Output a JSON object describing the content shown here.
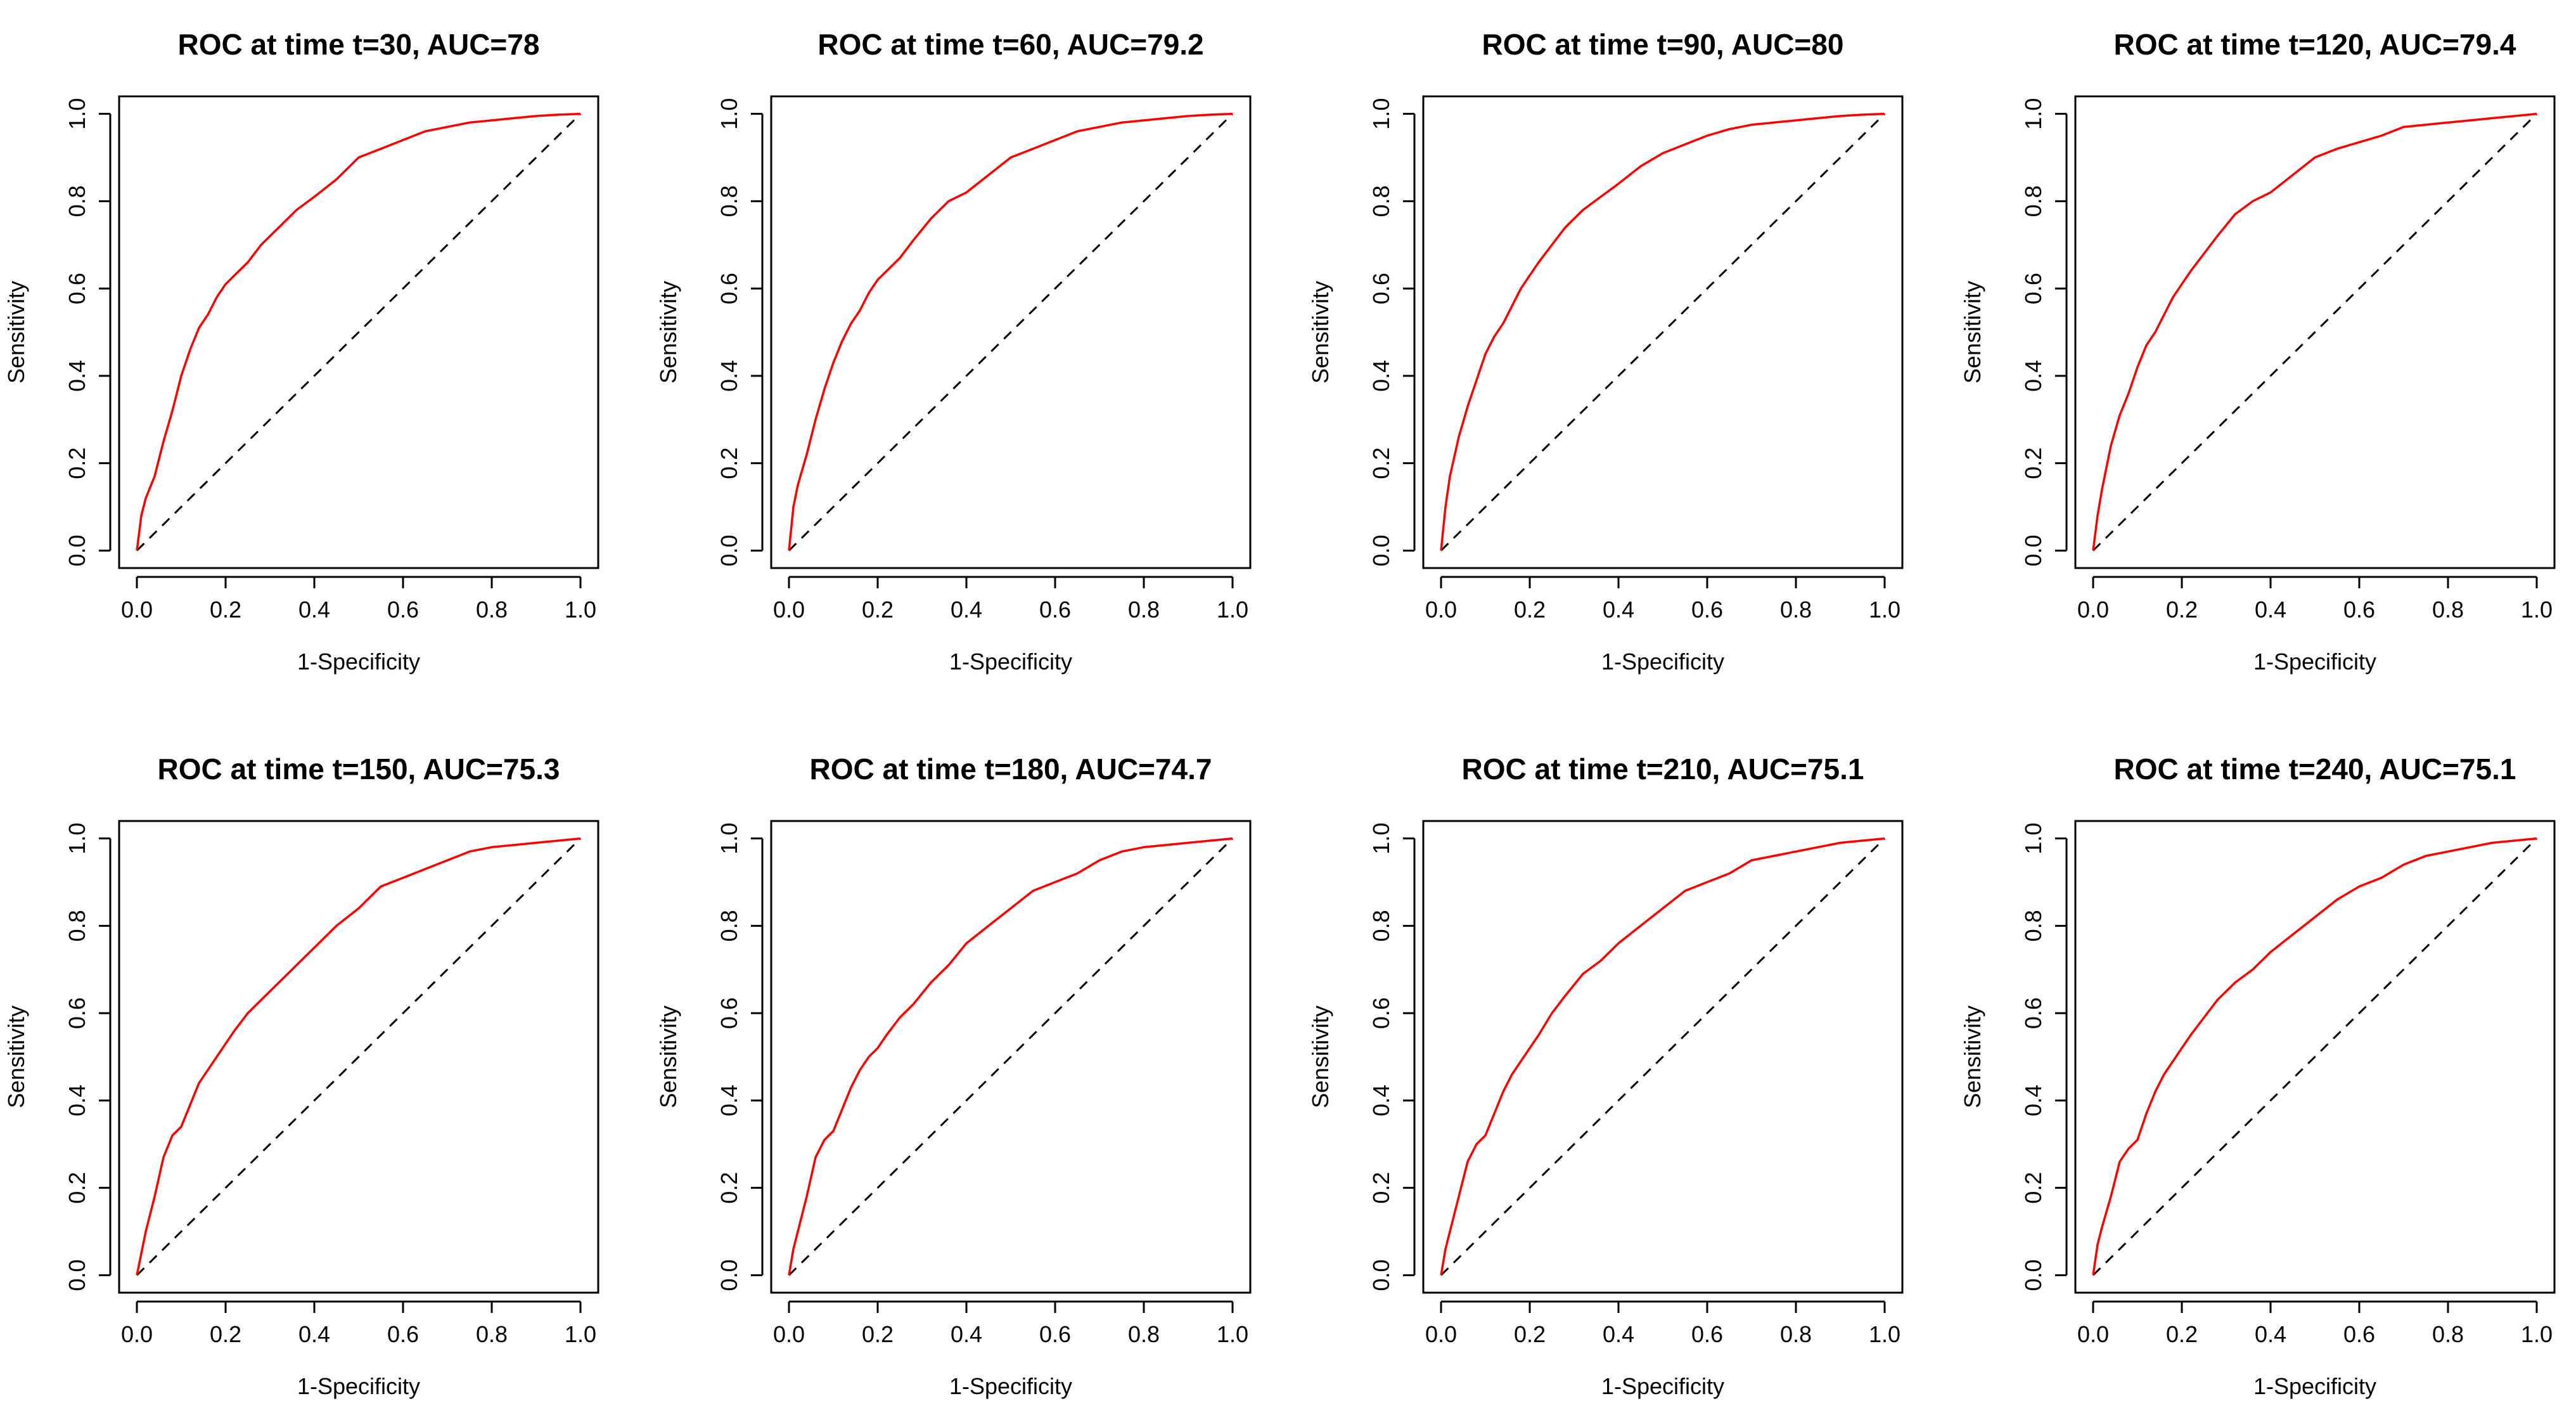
{
  "figure": {
    "line_color": "#ff0000",
    "diagonal_color": "#000000",
    "diagonal_style": "dashed"
  },
  "chart_data": [
    {
      "type": "line",
      "title": "ROC at time t=30, AUC=78",
      "xlabel": "1-Specificity",
      "ylabel": "Sensitivity",
      "xlim": [
        0,
        1
      ],
      "ylim": [
        0,
        1
      ],
      "xticks": [
        0.0,
        0.2,
        0.4,
        0.6,
        0.8,
        1.0
      ],
      "yticks": [
        0.0,
        0.2,
        0.4,
        0.6,
        0.8,
        1.0
      ],
      "xtick_labels": [
        "0.0",
        "0.2",
        "0.4",
        "0.6",
        "0.8",
        "1.0"
      ],
      "ytick_labels": [
        "0.0",
        "0.2",
        "0.4",
        "0.6",
        "0.8",
        "1.0"
      ],
      "grid": false,
      "reference_line": true,
      "series": [
        {
          "x": [
            0.0,
            0.01,
            0.02,
            0.04,
            0.06,
            0.08,
            0.1,
            0.12,
            0.14,
            0.16,
            0.18,
            0.2,
            0.22,
            0.25,
            0.28,
            0.32,
            0.36,
            0.4,
            0.45,
            0.5,
            0.55,
            0.6,
            0.65,
            0.7,
            0.75,
            0.8,
            0.85,
            0.9,
            0.95,
            1.0
          ],
          "y": [
            0.0,
            0.08,
            0.12,
            0.17,
            0.25,
            0.32,
            0.4,
            0.46,
            0.51,
            0.54,
            0.58,
            0.61,
            0.63,
            0.66,
            0.7,
            0.74,
            0.78,
            0.81,
            0.85,
            0.9,
            0.92,
            0.94,
            0.96,
            0.97,
            0.98,
            0.985,
            0.99,
            0.995,
            0.998,
            1.0
          ]
        }
      ]
    },
    {
      "type": "line",
      "title": "ROC at time t=60, AUC=79.2",
      "xlabel": "1-Specificity",
      "ylabel": "Sensitivity",
      "xlim": [
        0,
        1
      ],
      "ylim": [
        0,
        1
      ],
      "xticks": [
        0.0,
        0.2,
        0.4,
        0.6,
        0.8,
        1.0
      ],
      "yticks": [
        0.0,
        0.2,
        0.4,
        0.6,
        0.8,
        1.0
      ],
      "xtick_labels": [
        "0.0",
        "0.2",
        "0.4",
        "0.6",
        "0.8",
        "1.0"
      ],
      "ytick_labels": [
        "0.0",
        "0.2",
        "0.4",
        "0.6",
        "0.8",
        "1.0"
      ],
      "grid": false,
      "reference_line": true,
      "series": [
        {
          "x": [
            0.0,
            0.01,
            0.02,
            0.04,
            0.06,
            0.08,
            0.1,
            0.12,
            0.14,
            0.16,
            0.18,
            0.2,
            0.22,
            0.25,
            0.28,
            0.32,
            0.36,
            0.4,
            0.45,
            0.5,
            0.55,
            0.6,
            0.65,
            0.7,
            0.75,
            0.8,
            0.85,
            0.9,
            0.95,
            1.0
          ],
          "y": [
            0.0,
            0.1,
            0.15,
            0.22,
            0.3,
            0.37,
            0.43,
            0.48,
            0.52,
            0.55,
            0.59,
            0.62,
            0.64,
            0.67,
            0.71,
            0.76,
            0.8,
            0.82,
            0.86,
            0.9,
            0.92,
            0.94,
            0.96,
            0.97,
            0.98,
            0.985,
            0.99,
            0.995,
            0.998,
            1.0
          ]
        }
      ]
    },
    {
      "type": "line",
      "title": "ROC at time t=90, AUC=80",
      "xlabel": "1-Specificity",
      "ylabel": "Sensitivity",
      "xlim": [
        0,
        1
      ],
      "ylim": [
        0,
        1
      ],
      "xticks": [
        0.0,
        0.2,
        0.4,
        0.6,
        0.8,
        1.0
      ],
      "yticks": [
        0.0,
        0.2,
        0.4,
        0.6,
        0.8,
        1.0
      ],
      "xtick_labels": [
        "0.0",
        "0.2",
        "0.4",
        "0.6",
        "0.8",
        "1.0"
      ],
      "ytick_labels": [
        "0.0",
        "0.2",
        "0.4",
        "0.6",
        "0.8",
        "1.0"
      ],
      "grid": false,
      "reference_line": true,
      "series": [
        {
          "x": [
            0.0,
            0.01,
            0.02,
            0.04,
            0.06,
            0.08,
            0.1,
            0.12,
            0.14,
            0.16,
            0.18,
            0.2,
            0.22,
            0.25,
            0.28,
            0.32,
            0.36,
            0.4,
            0.45,
            0.5,
            0.55,
            0.6,
            0.65,
            0.7,
            0.75,
            0.8,
            0.85,
            0.9,
            0.95,
            1.0
          ],
          "y": [
            0.0,
            0.1,
            0.17,
            0.26,
            0.33,
            0.39,
            0.45,
            0.49,
            0.52,
            0.56,
            0.6,
            0.63,
            0.66,
            0.7,
            0.74,
            0.78,
            0.81,
            0.84,
            0.88,
            0.91,
            0.93,
            0.95,
            0.965,
            0.975,
            0.98,
            0.985,
            0.99,
            0.995,
            0.998,
            1.0
          ]
        }
      ]
    },
    {
      "type": "line",
      "title": "ROC at time t=120, AUC=79.4",
      "xlabel": "1-Specificity",
      "ylabel": "Sensitivity",
      "xlim": [
        0,
        1
      ],
      "ylim": [
        0,
        1
      ],
      "xticks": [
        0.0,
        0.2,
        0.4,
        0.6,
        0.8,
        1.0
      ],
      "yticks": [
        0.0,
        0.2,
        0.4,
        0.6,
        0.8,
        1.0
      ],
      "xtick_labels": [
        "0.0",
        "0.2",
        "0.4",
        "0.6",
        "0.8",
        "1.0"
      ],
      "ytick_labels": [
        "0.0",
        "0.2",
        "0.4",
        "0.6",
        "0.8",
        "1.0"
      ],
      "grid": false,
      "reference_line": true,
      "series": [
        {
          "x": [
            0.0,
            0.01,
            0.02,
            0.04,
            0.06,
            0.08,
            0.1,
            0.12,
            0.14,
            0.16,
            0.18,
            0.2,
            0.22,
            0.25,
            0.28,
            0.32,
            0.36,
            0.4,
            0.45,
            0.5,
            0.55,
            0.6,
            0.65,
            0.7,
            0.75,
            0.8,
            0.85,
            0.9,
            0.95,
            1.0
          ],
          "y": [
            0.0,
            0.08,
            0.14,
            0.24,
            0.31,
            0.36,
            0.42,
            0.47,
            0.5,
            0.54,
            0.58,
            0.61,
            0.64,
            0.68,
            0.72,
            0.77,
            0.8,
            0.82,
            0.86,
            0.9,
            0.92,
            0.935,
            0.95,
            0.97,
            0.975,
            0.98,
            0.985,
            0.99,
            0.995,
            1.0
          ]
        }
      ]
    },
    {
      "type": "line",
      "title": "ROC at time t=150, AUC=75.3",
      "xlabel": "1-Specificity",
      "ylabel": "Sensitivity",
      "xlim": [
        0,
        1
      ],
      "ylim": [
        0,
        1
      ],
      "xticks": [
        0.0,
        0.2,
        0.4,
        0.6,
        0.8,
        1.0
      ],
      "yticks": [
        0.0,
        0.2,
        0.4,
        0.6,
        0.8,
        1.0
      ],
      "xtick_labels": [
        "0.0",
        "0.2",
        "0.4",
        "0.6",
        "0.8",
        "1.0"
      ],
      "ytick_labels": [
        "0.0",
        "0.2",
        "0.4",
        "0.6",
        "0.8",
        "1.0"
      ],
      "grid": false,
      "reference_line": true,
      "series": [
        {
          "x": [
            0.0,
            0.01,
            0.02,
            0.04,
            0.06,
            0.08,
            0.1,
            0.12,
            0.14,
            0.16,
            0.18,
            0.2,
            0.22,
            0.25,
            0.28,
            0.32,
            0.36,
            0.4,
            0.45,
            0.5,
            0.55,
            0.6,
            0.65,
            0.7,
            0.75,
            0.8,
            0.85,
            0.9,
            0.95,
            1.0
          ],
          "y": [
            0.0,
            0.05,
            0.1,
            0.18,
            0.27,
            0.32,
            0.34,
            0.39,
            0.44,
            0.47,
            0.5,
            0.53,
            0.56,
            0.6,
            0.63,
            0.67,
            0.71,
            0.75,
            0.8,
            0.84,
            0.89,
            0.91,
            0.93,
            0.95,
            0.97,
            0.98,
            0.985,
            0.99,
            0.995,
            1.0
          ]
        }
      ]
    },
    {
      "type": "line",
      "title": "ROC at time t=180, AUC=74.7",
      "xlabel": "1-Specificity",
      "ylabel": "Sensitivity",
      "xlim": [
        0,
        1
      ],
      "ylim": [
        0,
        1
      ],
      "xticks": [
        0.0,
        0.2,
        0.4,
        0.6,
        0.8,
        1.0
      ],
      "yticks": [
        0.0,
        0.2,
        0.4,
        0.6,
        0.8,
        1.0
      ],
      "xtick_labels": [
        "0.0",
        "0.2",
        "0.4",
        "0.6",
        "0.8",
        "1.0"
      ],
      "ytick_labels": [
        "0.0",
        "0.2",
        "0.4",
        "0.6",
        "0.8",
        "1.0"
      ],
      "grid": false,
      "reference_line": true,
      "series": [
        {
          "x": [
            0.0,
            0.01,
            0.02,
            0.04,
            0.06,
            0.08,
            0.1,
            0.12,
            0.14,
            0.16,
            0.18,
            0.2,
            0.22,
            0.25,
            0.28,
            0.32,
            0.36,
            0.4,
            0.45,
            0.5,
            0.55,
            0.6,
            0.65,
            0.7,
            0.75,
            0.8,
            0.85,
            0.9,
            0.95,
            1.0
          ],
          "y": [
            0.0,
            0.06,
            0.1,
            0.18,
            0.27,
            0.31,
            0.33,
            0.38,
            0.43,
            0.47,
            0.5,
            0.52,
            0.55,
            0.59,
            0.62,
            0.67,
            0.71,
            0.76,
            0.8,
            0.84,
            0.88,
            0.9,
            0.92,
            0.95,
            0.97,
            0.98,
            0.985,
            0.99,
            0.995,
            1.0
          ]
        }
      ]
    },
    {
      "type": "line",
      "title": "ROC at time t=210, AUC=75.1",
      "xlabel": "1-Specificity",
      "ylabel": "Sensitivity",
      "xlim": [
        0,
        1
      ],
      "ylim": [
        0,
        1
      ],
      "xticks": [
        0.0,
        0.2,
        0.4,
        0.6,
        0.8,
        1.0
      ],
      "yticks": [
        0.0,
        0.2,
        0.4,
        0.6,
        0.8,
        1.0
      ],
      "xtick_labels": [
        "0.0",
        "0.2",
        "0.4",
        "0.6",
        "0.8",
        "1.0"
      ],
      "ytick_labels": [
        "0.0",
        "0.2",
        "0.4",
        "0.6",
        "0.8",
        "1.0"
      ],
      "grid": false,
      "reference_line": true,
      "series": [
        {
          "x": [
            0.0,
            0.01,
            0.02,
            0.04,
            0.06,
            0.08,
            0.1,
            0.12,
            0.14,
            0.16,
            0.18,
            0.2,
            0.22,
            0.25,
            0.28,
            0.32,
            0.36,
            0.4,
            0.45,
            0.5,
            0.55,
            0.6,
            0.65,
            0.7,
            0.75,
            0.8,
            0.85,
            0.9,
            0.95,
            1.0
          ],
          "y": [
            0.0,
            0.06,
            0.1,
            0.18,
            0.26,
            0.3,
            0.32,
            0.37,
            0.42,
            0.46,
            0.49,
            0.52,
            0.55,
            0.6,
            0.64,
            0.69,
            0.72,
            0.76,
            0.8,
            0.84,
            0.88,
            0.9,
            0.92,
            0.95,
            0.96,
            0.97,
            0.98,
            0.99,
            0.995,
            1.0
          ]
        }
      ]
    },
    {
      "type": "line",
      "title": "ROC at time t=240, AUC=75.1",
      "xlabel": "1-Specificity",
      "ylabel": "Sensitivity",
      "xlim": [
        0,
        1
      ],
      "ylim": [
        0,
        1
      ],
      "xticks": [
        0.0,
        0.2,
        0.4,
        0.6,
        0.8,
        1.0
      ],
      "yticks": [
        0.0,
        0.2,
        0.4,
        0.6,
        0.8,
        1.0
      ],
      "xtick_labels": [
        "0.0",
        "0.2",
        "0.4",
        "0.6",
        "0.8",
        "1.0"
      ],
      "ytick_labels": [
        "0.0",
        "0.2",
        "0.4",
        "0.6",
        "0.8",
        "1.0"
      ],
      "grid": false,
      "reference_line": true,
      "series": [
        {
          "x": [
            0.0,
            0.01,
            0.02,
            0.04,
            0.06,
            0.08,
            0.1,
            0.12,
            0.14,
            0.16,
            0.18,
            0.2,
            0.22,
            0.25,
            0.28,
            0.32,
            0.36,
            0.4,
            0.45,
            0.5,
            0.55,
            0.6,
            0.65,
            0.7,
            0.75,
            0.8,
            0.85,
            0.9,
            0.95,
            1.0
          ],
          "y": [
            0.0,
            0.07,
            0.11,
            0.18,
            0.26,
            0.29,
            0.31,
            0.37,
            0.42,
            0.46,
            0.49,
            0.52,
            0.55,
            0.59,
            0.63,
            0.67,
            0.7,
            0.74,
            0.78,
            0.82,
            0.86,
            0.89,
            0.91,
            0.94,
            0.96,
            0.97,
            0.98,
            0.99,
            0.995,
            1.0
          ]
        }
      ]
    }
  ]
}
